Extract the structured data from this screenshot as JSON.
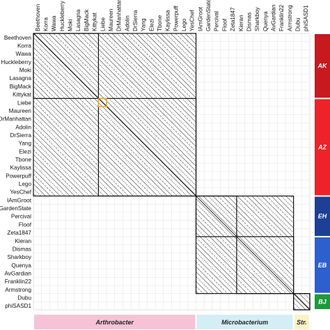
{
  "phages": [
    "Beethoven",
    "Korra",
    "Wawa",
    "Huckleberry",
    "Moki",
    "Lasagna",
    "BigMack",
    "Kittykat",
    "Liebe",
    "Maureen",
    "DrManhattan",
    "Adolin",
    "DrSierra",
    "Yang",
    "Elezi",
    "Tbone",
    "Kaylissa",
    "Powerpuff",
    "Lego",
    "YesChef",
    "IAmGroot",
    "GardenState",
    "Percival",
    "Floof",
    "Zeta1847",
    "Kieran",
    "Dismas",
    "Sharkboy",
    "Quenya",
    "AvGardian",
    "Franklin22",
    "Armstrong",
    "Dubu",
    "phiSASD1"
  ],
  "highlighted_phage": "Zeta1847",
  "highlight_color": "#e2202a",
  "clusters": [
    {
      "label": "AK",
      "start": 0,
      "end": 7,
      "color": "#c8191e"
    },
    {
      "label": "AZ",
      "start": 8,
      "end": 19,
      "color": "#ee2228"
    },
    {
      "label": "EH",
      "start": 20,
      "end": 24,
      "color": "#1d3f95"
    },
    {
      "label": "EB",
      "start": 25,
      "end": 31,
      "color": "#2d5fcf"
    },
    {
      "label": "BJ",
      "start": 32,
      "end": 33,
      "color": "#1c9a3b"
    }
  ],
  "genera": [
    {
      "label": "Arthrobacter",
      "start": 0,
      "end": 19,
      "color": "#f6c3d6"
    },
    {
      "label": "Microbacterium",
      "start": 20,
      "end": 31,
      "color": "#d3eef6"
    },
    {
      "label": "Str.",
      "start": 32,
      "end": 33,
      "color": "#fbf3c6"
    }
  ],
  "highlight_cell": {
    "row": "Liebe",
    "col": "Liebe",
    "color": "#f2a619"
  }
}
